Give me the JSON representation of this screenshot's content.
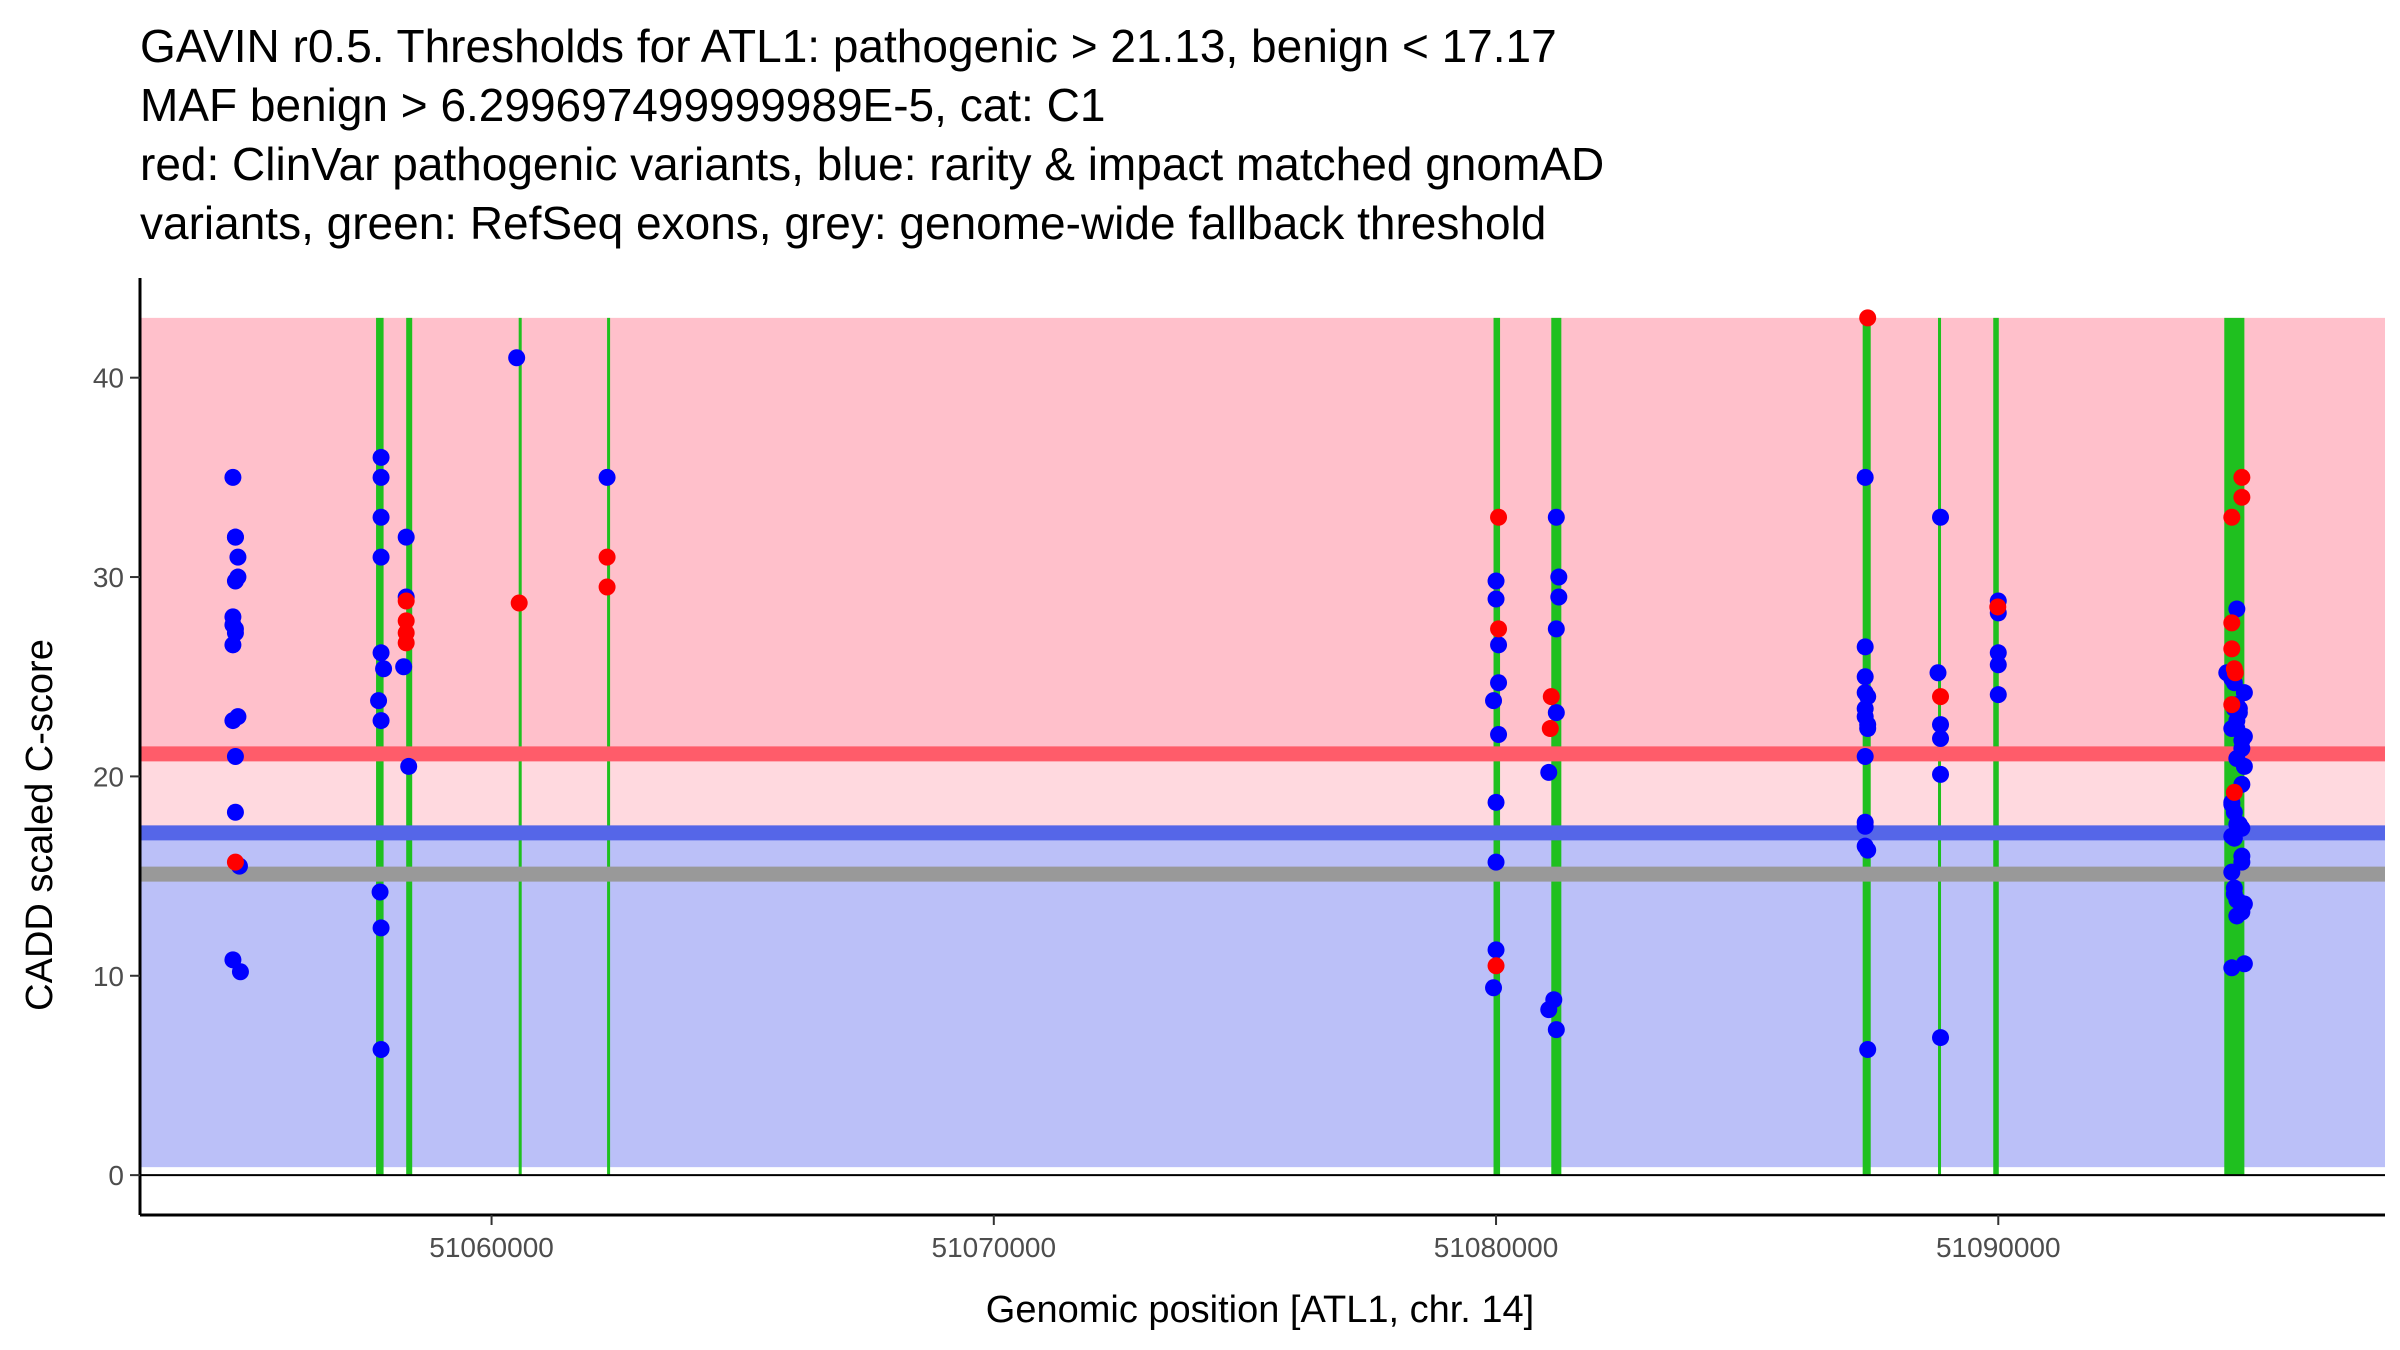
{
  "chart_data": {
    "type": "scatter",
    "title_lines": [
      "GAVIN r0.5. Thresholds for ATL1: pathogenic > 21.13, benign < 17.17",
      "MAF benign > 6.299697499999989E-5, cat: C1",
      "red: ClinVar pathogenic variants, blue: rarity & impact matched gnomAD",
      "variants, green: RefSeq exons, grey: genome-wide fallback threshold"
    ],
    "xlabel": "Genomic position [ATL1, chr. 14]",
    "ylabel": "CADD scaled C-score",
    "xlim": [
      51053000,
      51097700
    ],
    "ylim": [
      -2,
      45
    ],
    "x_ticks": [
      51060000,
      51070000,
      51080000,
      51090000
    ],
    "y_ticks": [
      0,
      10,
      20,
      30,
      40
    ],
    "legend": "none",
    "regions": [
      {
        "name": "pathogenic-region",
        "y_from": 21.13,
        "y_to": 43,
        "color": "#FFC0CB"
      },
      {
        "name": "uncertain-region",
        "y_from": 17.17,
        "y_to": 21.13,
        "color": "#FFD9DF"
      },
      {
        "name": "benign-region",
        "y_from": 0.4,
        "y_to": 17.17,
        "color": "#BBC0F8"
      }
    ],
    "threshold_lines": [
      {
        "name": "pathogenic-threshold-line",
        "y": 21.13,
        "color": "#FF5C6A"
      },
      {
        "name": "benign-threshold-line",
        "y": 17.17,
        "color": "#5566E8"
      },
      {
        "name": "fallback-threshold-line",
        "y": 15.1,
        "color": "#999999"
      }
    ],
    "exons": [
      {
        "start": 51057700,
        "end": 51057850
      },
      {
        "start": 51058300,
        "end": 51058420
      },
      {
        "start": 51060540,
        "end": 51060600
      },
      {
        "start": 51062300,
        "end": 51062360
      },
      {
        "start": 51079950,
        "end": 51080080
      },
      {
        "start": 51081100,
        "end": 51081300
      },
      {
        "start": 51087300,
        "end": 51087460
      },
      {
        "start": 51088800,
        "end": 51088860
      },
      {
        "start": 51089900,
        "end": 51090010
      },
      {
        "start": 51094500,
        "end": 51094900
      }
    ],
    "exon_color": "#1FC01F",
    "series": [
      {
        "name": "ClinVar pathogenic variants",
        "color": "#FF0000",
        "x": [
          51054900,
          51058300,
          51058300,
          51058300,
          51058300,
          51060550,
          51062300,
          51062300,
          51080050,
          51080050,
          51080000,
          51081100,
          51081080,
          51087400,
          51088850,
          51089990,
          51094650,
          51094650,
          51094650,
          51094700,
          51094720,
          51094650,
          51094700,
          51094850,
          51094850
        ],
        "y": [
          15.7,
          28.8,
          27.8,
          27.2,
          26.7,
          28.7,
          31.0,
          29.5,
          33.0,
          27.4,
          10.5,
          24.0,
          22.4,
          43.0,
          24.0,
          28.5,
          33.0,
          27.7,
          26.4,
          25.4,
          25.2,
          23.6,
          19.2,
          35.0,
          34.0
        ]
      },
      {
        "name": "gnomAD rarity & impact matched variants",
        "color": "#0000FF",
        "x": [
          51054850,
          51054900,
          51054900,
          51054950,
          51054950,
          51054900,
          51054850,
          51054850,
          51054900,
          51054900,
          51054850,
          51054950,
          51054850,
          51054900,
          51054900,
          51054980,
          51054850,
          51055000,
          51057800,
          51057800,
          51057800,
          51057800,
          51057850,
          51057750,
          51057800,
          51057780,
          51057800,
          51057800,
          51057800,
          51058300,
          51058350,
          51058250,
          51058300,
          51060500,
          51062300,
          51080000,
          51080050,
          51080050,
          51080000,
          51080000,
          51080000,
          51079950,
          51080000,
          51080050,
          51079950,
          51081200,
          51081050,
          51081150,
          51081050,
          51081200,
          51081200,
          51081250,
          51081250,
          51081200,
          51087350,
          51087350,
          51087400,
          51087350,
          51087400,
          51087350,
          51087350,
          51087350,
          51087350,
          51087400,
          51087400,
          51087350,
          51087350,
          51087350,
          51087400,
          51088850,
          51088850,
          51088800,
          51088850,
          51088850,
          51088850,
          51090000,
          51090000,
          51090000,
          51090000,
          51090000,
          51094550,
          51094650,
          51094750,
          51094800,
          51094800,
          51094750,
          51094650,
          51094850,
          51094850,
          51094900,
          51094650,
          51094700,
          51094750,
          51094800,
          51094850,
          51094650,
          51094700,
          51094850,
          51094850,
          51094650,
          51094700,
          51094750,
          51094800,
          51094900,
          51094850,
          51094750,
          51094900,
          51094650,
          51094750,
          51094700,
          51094900,
          51094700,
          51094750,
          51094900,
          51094750,
          51094850,
          51094650,
          51094700
        ],
        "y": [
          35.0,
          32.0,
          32.0,
          31.0,
          30.0,
          29.8,
          28.0,
          27.6,
          27.4,
          27.2,
          26.6,
          23.0,
          22.8,
          21.0,
          18.2,
          15.5,
          10.8,
          10.2,
          36.0,
          33.0,
          31.0,
          26.2,
          25.4,
          23.8,
          22.8,
          14.2,
          12.4,
          6.3,
          35.0,
          29.0,
          20.5,
          25.5,
          32.0,
          41.0,
          35.0,
          29.8,
          26.6,
          22.1,
          18.7,
          15.7,
          11.3,
          9.4,
          28.9,
          24.7,
          23.8,
          23.2,
          20.2,
          8.8,
          8.3,
          7.3,
          33.0,
          30.0,
          29.0,
          27.4,
          26.5,
          25.0,
          24.0,
          23.0,
          22.4,
          21.0,
          17.7,
          17.5,
          16.5,
          16.3,
          6.3,
          35.0,
          24.2,
          23.4,
          22.6,
          20.1,
          33.0,
          25.2,
          22.6,
          21.9,
          6.9,
          24.1,
          28.8,
          28.2,
          26.2,
          25.6,
          25.2,
          24.9,
          23.6,
          23.4,
          23.2,
          22.4,
          22.4,
          21.8,
          21.4,
          20.5,
          18.7,
          18.2,
          17.6,
          17.6,
          17.4,
          17.0,
          16.9,
          16.0,
          15.7,
          15.2,
          14.4,
          13.8,
          13.7,
          13.6,
          13.2,
          13.0,
          10.6,
          10.4,
          28.4,
          24.7,
          24.2,
          23.4,
          22.8,
          22.0,
          20.9,
          19.6,
          18.6,
          14.1
        ]
      }
    ]
  }
}
